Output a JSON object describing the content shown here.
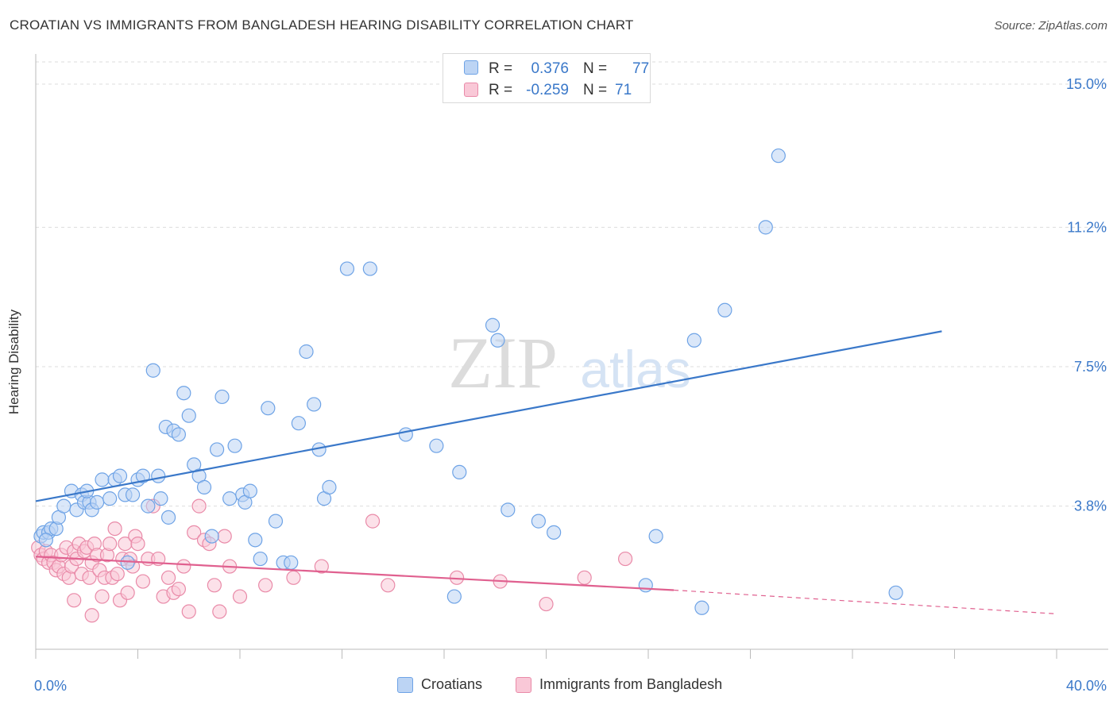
{
  "title": "CROATIAN VS IMMIGRANTS FROM BANGLADESH HEARING DISABILITY CORRELATION CHART",
  "source": "Source: ZipAtlas.com",
  "watermark": {
    "zip": "ZIP",
    "atlas": "atlas"
  },
  "legend_top": {
    "rows": [
      {
        "r_label": "R =",
        "r_value": "0.376",
        "n_label": "N =",
        "n_value": "77",
        "color": "#6ea3e6",
        "fill": "#bcd4f4"
      },
      {
        "r_label": "R =",
        "r_value": "-0.259",
        "n_label": "N =",
        "n_value": "71",
        "color": "#e98aa8",
        "fill": "#f9c8d7"
      }
    ]
  },
  "chart_data": {
    "type": "scatter",
    "title": "CROATIAN VS IMMIGRANTS FROM BANGLADESH HEARING DISABILITY CORRELATION CHART",
    "xlabel": "",
    "ylabel": "Hearing Disability",
    "xlim": [
      0,
      40
    ],
    "ylim": [
      0,
      15.8
    ],
    "x_tick_labels": [
      "0.0%",
      "40.0%"
    ],
    "y_ticks": [
      3.8,
      7.5,
      11.2,
      15.0
    ],
    "y_tick_labels": [
      "3.8%",
      "7.5%",
      "11.2%",
      "15.0%"
    ],
    "grid": true,
    "legend_position": "bottom",
    "series": [
      {
        "name": "Croatians",
        "color": "#3a78c9",
        "point_color": "#6ea3e6",
        "fill": "#bcd4f4",
        "trend": {
          "x": [
            0,
            35.5
          ],
          "y": [
            3.93,
            8.44
          ]
        },
        "points": [
          [
            0.2,
            3.0
          ],
          [
            0.3,
            3.1
          ],
          [
            0.5,
            3.1
          ],
          [
            0.6,
            3.2
          ],
          [
            0.8,
            3.2
          ],
          [
            0.9,
            3.5
          ],
          [
            1.1,
            3.8
          ],
          [
            1.4,
            4.2
          ],
          [
            1.6,
            3.7
          ],
          [
            1.8,
            4.1
          ],
          [
            1.9,
            3.9
          ],
          [
            2.1,
            3.9
          ],
          [
            2.2,
            3.7
          ],
          [
            2.4,
            3.9
          ],
          [
            2.6,
            4.5
          ],
          [
            2.9,
            4.0
          ],
          [
            3.1,
            4.5
          ],
          [
            3.3,
            4.6
          ],
          [
            3.5,
            4.1
          ],
          [
            3.8,
            4.1
          ],
          [
            4.0,
            4.5
          ],
          [
            4.2,
            4.6
          ],
          [
            4.4,
            3.8
          ],
          [
            4.6,
            7.4
          ],
          [
            4.8,
            4.6
          ],
          [
            5.1,
            5.9
          ],
          [
            5.2,
            3.5
          ],
          [
            5.4,
            5.8
          ],
          [
            5.6,
            5.7
          ],
          [
            5.8,
            6.8
          ],
          [
            6.0,
            6.2
          ],
          [
            6.2,
            4.9
          ],
          [
            6.4,
            4.6
          ],
          [
            6.6,
            4.3
          ],
          [
            6.9,
            3.0
          ],
          [
            7.1,
            5.3
          ],
          [
            7.3,
            6.7
          ],
          [
            7.6,
            4.0
          ],
          [
            7.8,
            5.4
          ],
          [
            8.1,
            4.1
          ],
          [
            8.2,
            3.9
          ],
          [
            8.4,
            4.2
          ],
          [
            8.6,
            2.9
          ],
          [
            8.8,
            2.4
          ],
          [
            9.1,
            6.4
          ],
          [
            9.4,
            3.4
          ],
          [
            9.7,
            2.3
          ],
          [
            10.0,
            2.3
          ],
          [
            10.3,
            6.0
          ],
          [
            10.6,
            7.9
          ],
          [
            10.9,
            6.5
          ],
          [
            11.1,
            5.3
          ],
          [
            11.3,
            4.0
          ],
          [
            11.5,
            4.3
          ],
          [
            12.2,
            10.1
          ],
          [
            13.1,
            10.1
          ],
          [
            14.5,
            5.7
          ],
          [
            15.7,
            5.4
          ],
          [
            16.4,
            1.4
          ],
          [
            16.6,
            4.7
          ],
          [
            17.9,
            8.6
          ],
          [
            18.1,
            8.2
          ],
          [
            18.5,
            3.7
          ],
          [
            19.7,
            3.4
          ],
          [
            20.3,
            3.1
          ],
          [
            23.9,
            1.7
          ],
          [
            24.3,
            3.0
          ],
          [
            25.8,
            8.2
          ],
          [
            27.0,
            9.0
          ],
          [
            28.6,
            11.2
          ],
          [
            29.1,
            13.1
          ],
          [
            26.1,
            1.1
          ],
          [
            33.7,
            1.5
          ],
          [
            0.4,
            2.9
          ],
          [
            3.6,
            2.3
          ],
          [
            4.9,
            4.0
          ],
          [
            2.0,
            4.2
          ]
        ]
      },
      {
        "name": "Immigrants from Bangladesh",
        "color": "#e0608f",
        "point_color": "#e98aa8",
        "fill": "#f9c8d7",
        "trend_solid": {
          "x": [
            0,
            25.0
          ],
          "y": [
            2.46,
            1.57
          ]
        },
        "trend_dashed": {
          "x": [
            25.0,
            40.0
          ],
          "y": [
            1.57,
            0.94
          ]
        },
        "points": [
          [
            0.1,
            2.7
          ],
          [
            0.2,
            2.5
          ],
          [
            0.3,
            2.4
          ],
          [
            0.4,
            2.6
          ],
          [
            0.5,
            2.3
          ],
          [
            0.6,
            2.5
          ],
          [
            0.7,
            2.3
          ],
          [
            0.8,
            2.1
          ],
          [
            0.9,
            2.2
          ],
          [
            1.0,
            2.5
          ],
          [
            1.1,
            2.0
          ],
          [
            1.2,
            2.7
          ],
          [
            1.3,
            1.9
          ],
          [
            1.4,
            2.2
          ],
          [
            1.5,
            2.6
          ],
          [
            1.6,
            2.4
          ],
          [
            1.7,
            2.8
          ],
          [
            1.8,
            2.0
          ],
          [
            1.9,
            2.6
          ],
          [
            2.0,
            2.7
          ],
          [
            2.1,
            1.9
          ],
          [
            2.2,
            2.3
          ],
          [
            2.3,
            2.8
          ],
          [
            2.4,
            2.5
          ],
          [
            2.5,
            2.1
          ],
          [
            2.6,
            1.4
          ],
          [
            2.7,
            1.9
          ],
          [
            2.8,
            2.5
          ],
          [
            2.9,
            2.8
          ],
          [
            3.0,
            1.9
          ],
          [
            3.1,
            3.2
          ],
          [
            3.2,
            2.0
          ],
          [
            3.3,
            1.3
          ],
          [
            3.4,
            2.4
          ],
          [
            3.5,
            2.8
          ],
          [
            3.6,
            1.5
          ],
          [
            3.7,
            2.4
          ],
          [
            3.8,
            2.2
          ],
          [
            3.9,
            3.0
          ],
          [
            4.0,
            2.8
          ],
          [
            4.2,
            1.8
          ],
          [
            4.4,
            2.4
          ],
          [
            4.6,
            3.8
          ],
          [
            4.8,
            2.4
          ],
          [
            5.0,
            1.4
          ],
          [
            5.2,
            1.9
          ],
          [
            5.4,
            1.5
          ],
          [
            5.6,
            1.6
          ],
          [
            5.8,
            2.2
          ],
          [
            6.0,
            1.0
          ],
          [
            6.2,
            3.1
          ],
          [
            6.4,
            3.8
          ],
          [
            6.6,
            2.9
          ],
          [
            6.8,
            2.8
          ],
          [
            7.0,
            1.7
          ],
          [
            7.2,
            1.0
          ],
          [
            7.4,
            3.0
          ],
          [
            7.6,
            2.2
          ],
          [
            8.0,
            1.4
          ],
          [
            9.0,
            1.7
          ],
          [
            10.1,
            1.9
          ],
          [
            11.2,
            2.2
          ],
          [
            13.2,
            3.4
          ],
          [
            13.8,
            1.7
          ],
          [
            16.5,
            1.9
          ],
          [
            18.2,
            1.8
          ],
          [
            20.0,
            1.2
          ],
          [
            21.5,
            1.9
          ],
          [
            23.1,
            2.4
          ],
          [
            1.5,
            1.3
          ],
          [
            2.2,
            0.9
          ]
        ]
      }
    ]
  },
  "legend_bottom": [
    {
      "label": "Croatians",
      "color": "#6ea3e6",
      "fill": "#bcd4f4"
    },
    {
      "label": "Immigrants from Bangladesh",
      "color": "#e98aa8",
      "fill": "#f9c8d7"
    }
  ]
}
